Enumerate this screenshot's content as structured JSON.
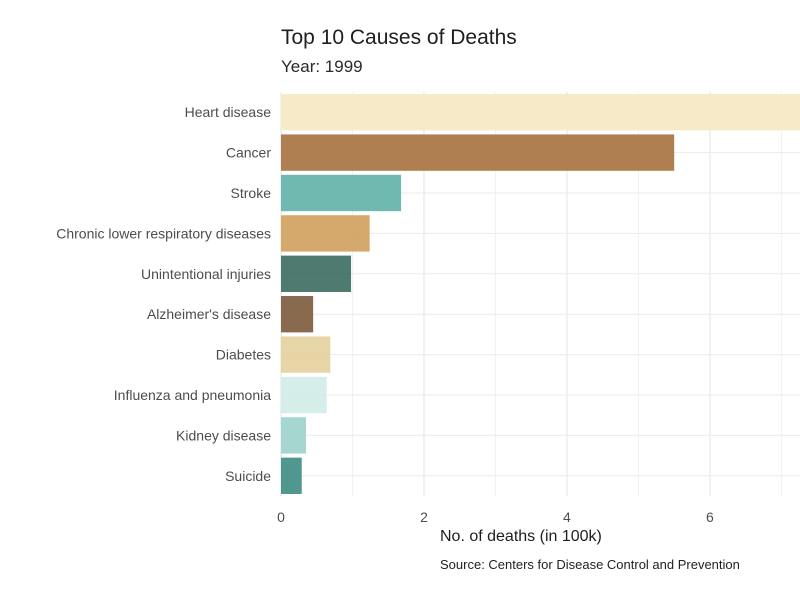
{
  "chart_data": {
    "type": "bar",
    "orientation": "horizontal",
    "title": "Top 10 Causes of Deaths",
    "subtitle": "Year: 1999",
    "xlabel": "No. of deaths (in 100k)",
    "ylabel": "",
    "caption": "Source: Centers for Disease Control and Prevention",
    "categories": [
      "Heart disease",
      "Cancer",
      "Stroke",
      "Chronic lower respiratory diseases",
      "Unintentional injuries",
      "Alzheimer's disease",
      "Diabetes",
      "Influenza and pneumonia",
      "Kidney disease",
      "Suicide"
    ],
    "values": [
      7.26,
      5.5,
      1.68,
      1.24,
      0.98,
      0.45,
      0.69,
      0.64,
      0.35,
      0.29
    ],
    "colors": [
      "#f6e8c3",
      "#a6713f",
      "#5fb1a9",
      "#cfa05b",
      "#3b6b5f",
      "#7b5a3c",
      "#e6d09c",
      "#d2ece8",
      "#9bd3cb",
      "#3d8c84"
    ],
    "xticks": [
      0,
      2,
      4,
      6
    ],
    "xlim": [
      0,
      7.26
    ],
    "grid": true,
    "legend": "none"
  }
}
